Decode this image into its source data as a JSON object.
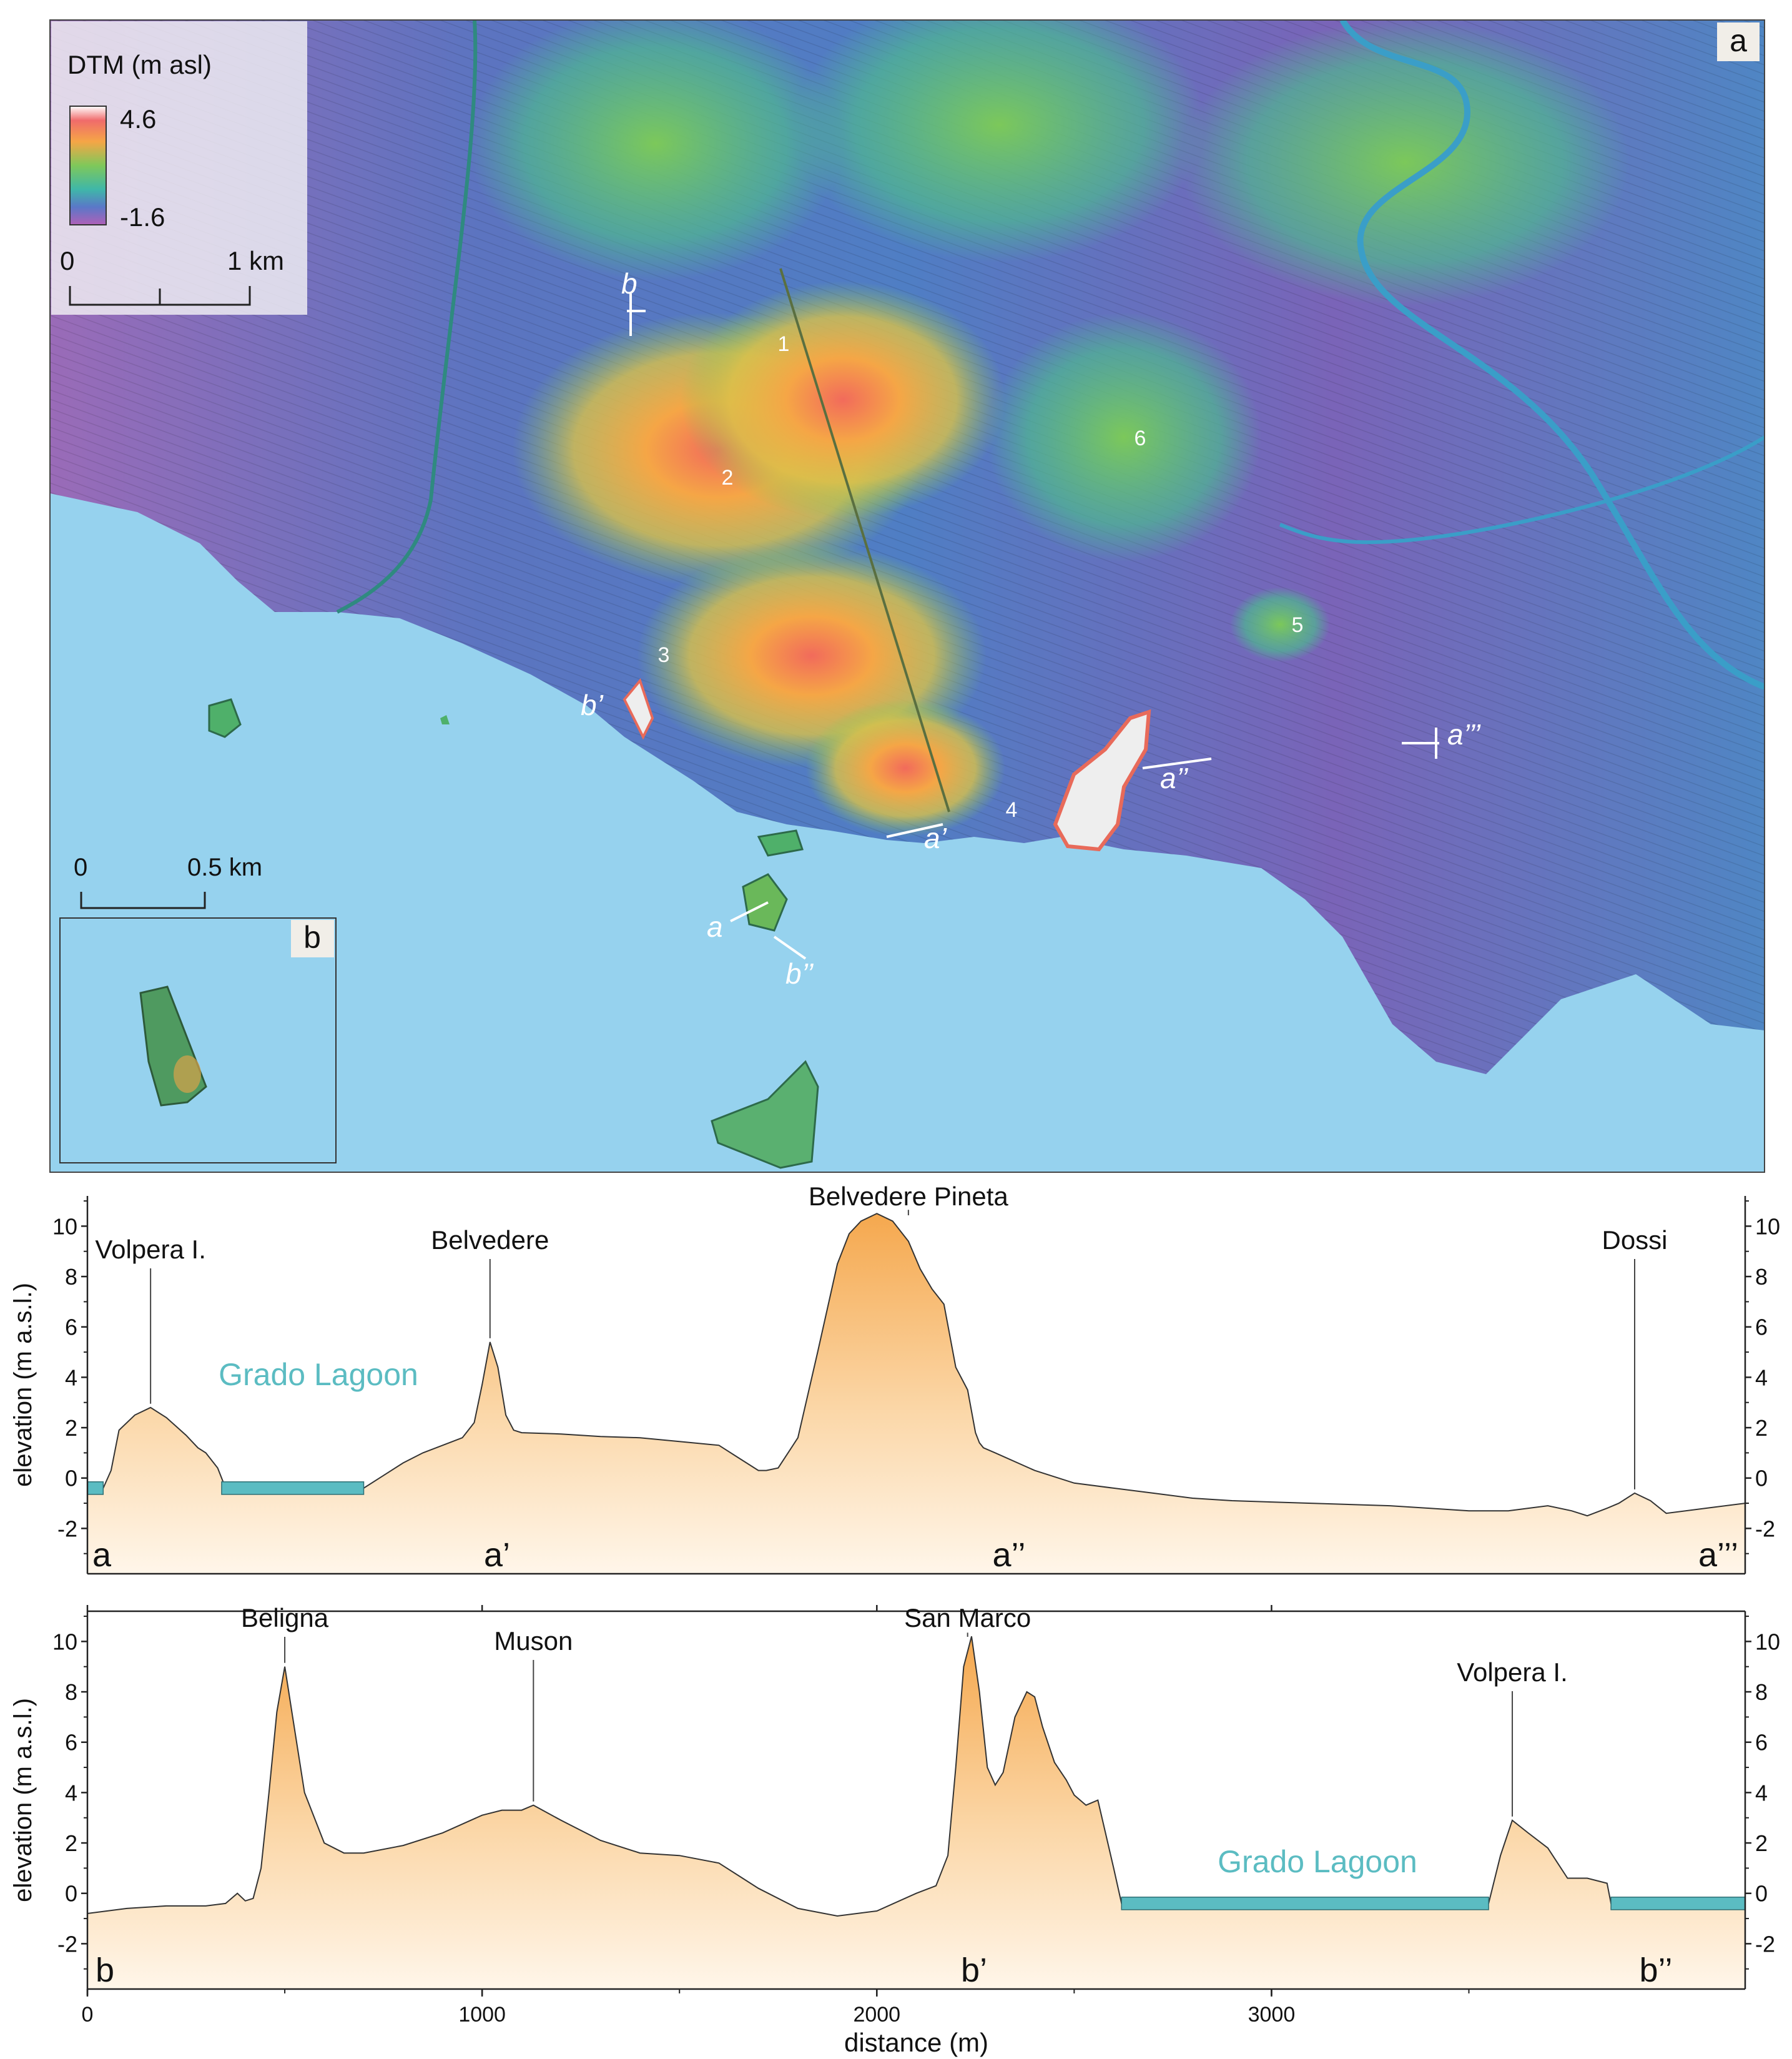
{
  "panel_a": {
    "label": "a",
    "legend": {
      "title": "DTM (m asl)",
      "max": "4.6",
      "min": "-1.6"
    },
    "scalebar": {
      "zero": "0",
      "end": "1 km"
    },
    "sites": [
      "1",
      "2",
      "3",
      "4",
      "5",
      "6"
    ],
    "profile_marks": {
      "a": "a",
      "a1": "a’",
      "a2": "a’’",
      "a3": "a’’’",
      "b": "b",
      "b1": "b’",
      "b2": "b’’"
    }
  },
  "panel_b": {
    "label": "b",
    "scalebar": {
      "zero": "0",
      "end": "0.5 km"
    }
  },
  "colors": {
    "water": "#96d2ee",
    "lagoon_line": "#5bbcc2",
    "profile_fill": "#f7b35e",
    "label_lagoon": "#5bbcc2"
  },
  "chart_data": [
    {
      "type": "area",
      "title": "",
      "ylabel": "elevation (m a.s.l.)",
      "ylim": [
        -3.8,
        11.2
      ],
      "xlim": [
        0,
        4200
      ],
      "yticks": [
        -2,
        0,
        2,
        4,
        6,
        8,
        10
      ],
      "xticks": [
        0,
        1000,
        2000,
        3000,
        4000
      ],
      "endpoints": {
        "left": "a",
        "mid1": "a’",
        "mid2": "a’’",
        "right": "a’’’"
      },
      "annotations": [
        {
          "text": "Volpera I.",
          "x": 160,
          "y": 2.8
        },
        {
          "text": "Belvedere",
          "x": 1020,
          "y": 5.4
        },
        {
          "text": "Belvedere Pineta",
          "x": 2080,
          "y": 10.5
        },
        {
          "text": "Dossi",
          "x": 3920,
          "y": -0.6
        }
      ],
      "lagoon_label": "Grado Lagoon",
      "water_segments": [
        [
          0,
          40
        ],
        [
          340,
          700
        ]
      ],
      "x": [
        0,
        40,
        60,
        80,
        120,
        160,
        200,
        250,
        280,
        300,
        330,
        350,
        400,
        500,
        600,
        700,
        750,
        800,
        850,
        900,
        950,
        980,
        1000,
        1020,
        1040,
        1060,
        1080,
        1100,
        1200,
        1300,
        1400,
        1500,
        1600,
        1650,
        1700,
        1720,
        1750,
        1800,
        1850,
        1900,
        1930,
        1960,
        2000,
        2040,
        2080,
        2110,
        2140,
        2170,
        2200,
        2230,
        2250,
        2260,
        2270,
        2300,
        2400,
        2500,
        2600,
        2700,
        2800,
        2900,
        3000,
        3100,
        3200,
        3300,
        3400,
        3500,
        3600,
        3700,
        3760,
        3800,
        3850,
        3880,
        3920,
        3960,
        4000,
        4100,
        4200
      ],
      "y": [
        -0.4,
        -0.4,
        0.3,
        1.9,
        2.5,
        2.8,
        2.4,
        1.7,
        1.2,
        1.0,
        0.4,
        -0.4,
        -0.4,
        -0.4,
        -0.4,
        -0.4,
        0.1,
        0.6,
        1.0,
        1.3,
        1.6,
        2.2,
        3.7,
        5.4,
        4.4,
        2.5,
        1.9,
        1.8,
        1.75,
        1.65,
        1.6,
        1.45,
        1.3,
        0.8,
        0.3,
        0.3,
        0.4,
        1.6,
        5.0,
        8.5,
        9.7,
        10.2,
        10.5,
        10.2,
        9.4,
        8.3,
        7.5,
        6.9,
        4.4,
        3.5,
        1.8,
        1.4,
        1.2,
        1.0,
        0.3,
        -0.2,
        -0.4,
        -0.6,
        -0.8,
        -0.9,
        -0.95,
        -1.0,
        -1.05,
        -1.1,
        -1.2,
        -1.3,
        -1.3,
        -1.1,
        -1.3,
        -1.5,
        -1.2,
        -1.0,
        -0.6,
        -0.9,
        -1.4,
        -1.2,
        -1.0
      ]
    },
    {
      "type": "area",
      "title": "",
      "xlabel": "distance (m)",
      "ylabel": "elevation (m a.s.l.)",
      "ylim": [
        -3.8,
        11.2
      ],
      "xlim": [
        0,
        4200
      ],
      "yticks": [
        -2,
        0,
        2,
        4,
        6,
        8,
        10
      ],
      "xticks": [
        0,
        1000,
        2000,
        3000
      ],
      "endpoints": {
        "left": "b",
        "mid": "b’",
        "right": "b’’"
      },
      "annotations": [
        {
          "text": "Beligna",
          "x": 500,
          "y": 9.0
        },
        {
          "text": "Muson",
          "x": 1130,
          "y": 3.5
        },
        {
          "text": "San Marco",
          "x": 2230,
          "y": 10.2
        },
        {
          "text": "Volpera I.",
          "x": 3610,
          "y": 2.9
        }
      ],
      "lagoon_label": "Grado Lagoon",
      "water_segments": [
        [
          2620,
          3550
        ],
        [
          3860,
          4200
        ]
      ],
      "x": [
        0,
        100,
        200,
        300,
        350,
        380,
        400,
        420,
        440,
        460,
        480,
        500,
        520,
        550,
        600,
        650,
        700,
        800,
        900,
        1000,
        1050,
        1100,
        1130,
        1200,
        1300,
        1400,
        1500,
        1600,
        1650,
        1700,
        1800,
        1900,
        2000,
        2100,
        2150,
        2180,
        2200,
        2220,
        2240,
        2260,
        2280,
        2300,
        2320,
        2350,
        2380,
        2400,
        2420,
        2450,
        2480,
        2500,
        2530,
        2560,
        2600,
        2620,
        2700,
        3000,
        3300,
        3550,
        3580,
        3610,
        3650,
        3700,
        3750,
        3800,
        3850,
        3860,
        4000,
        4200
      ],
      "y": [
        -0.8,
        -0.6,
        -0.5,
        -0.5,
        -0.4,
        0.0,
        -0.3,
        -0.2,
        1.0,
        4.0,
        7.2,
        9.0,
        7.0,
        4.0,
        2.0,
        1.6,
        1.6,
        1.9,
        2.4,
        3.1,
        3.3,
        3.3,
        3.5,
        2.9,
        2.1,
        1.6,
        1.5,
        1.2,
        0.7,
        0.2,
        -0.6,
        -0.9,
        -0.7,
        0.0,
        0.3,
        1.5,
        5.0,
        9.0,
        10.2,
        8.0,
        5.0,
        4.3,
        4.8,
        7.0,
        8.0,
        7.8,
        6.6,
        5.2,
        4.5,
        3.9,
        3.5,
        3.7,
        1.0,
        -0.4,
        -0.4,
        -0.4,
        -0.4,
        -0.4,
        1.5,
        2.9,
        2.4,
        1.8,
        0.6,
        0.6,
        0.4,
        -0.4,
        -0.4,
        -0.4
      ]
    }
  ]
}
